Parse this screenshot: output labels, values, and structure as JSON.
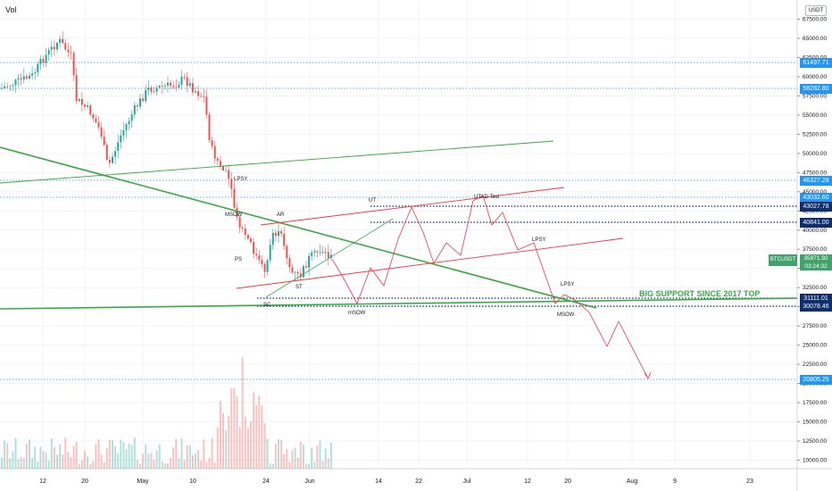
{
  "header": {
    "indicator_label": "Vol",
    "currency": "USDT"
  },
  "symbol": {
    "name": "BTCUSDT",
    "last_price": "35971.92",
    "countdown": "03:24:32"
  },
  "colors": {
    "up": "#26a69a",
    "down": "#ef5350",
    "wedge_green": "#3aa845",
    "red_line": "#f23645",
    "dark_blue": "#0d2d6b",
    "light_blue": "#2196f3",
    "grid": "#f0f3fa"
  },
  "chart_data": {
    "type": "candlestick",
    "y_axis_ticks": [
      "67500.00",
      "65000.00",
      "62500.00",
      "60000.00",
      "57500.00",
      "55000.00",
      "52500.00",
      "50000.00",
      "47500.00",
      "45000.00",
      "42500.00",
      "40000.00",
      "37500.00",
      "35000.00",
      "32500.00",
      "30000.00",
      "27500.00",
      "25000.00",
      "22500.00",
      "20000.00",
      "17500.00",
      "15000.00",
      "12500.00",
      "10000.00"
    ],
    "x_axis_ticks": [
      "12",
      "20",
      "May",
      "10",
      "24",
      "Jun",
      "14",
      "22",
      "Jul",
      "12",
      "20",
      "Aug",
      "9",
      "23"
    ],
    "price_levels": [
      {
        "label": "61497.71",
        "style": "dotted-blue"
      },
      {
        "label": "58282.80",
        "style": "dotted-blue"
      },
      {
        "label": "46327.28",
        "style": "dotted-blue"
      },
      {
        "label": "43032.60",
        "style": "dotted-blue"
      },
      {
        "label": "43027.78",
        "style": "dotted-navy"
      },
      {
        "label": "40841.00",
        "style": "dotted-navy"
      },
      {
        "label": "31111.01",
        "style": "dotted-navy"
      },
      {
        "label": "30078.46",
        "style": "dotted-navy"
      },
      {
        "label": "20805.25",
        "style": "dotted-blue"
      }
    ],
    "annotations": [
      "LPSY",
      "MSOW",
      "AR",
      "PS",
      "ST",
      "SC",
      "mSOW",
      "UT",
      "UTAD Test",
      "LPSY",
      "LPSY",
      "MSOW",
      "BIG SUPPORT SINCE 2017 TOP"
    ]
  }
}
